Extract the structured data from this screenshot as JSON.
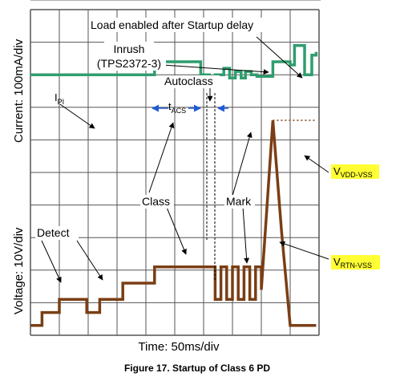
{
  "chart_data": {
    "type": "line",
    "title": "Figure 17.  Startup of Class 6 PD",
    "xlabel": "Time: 50ms/div",
    "ylabel_top": "Current: 100mA/div",
    "ylabel_bottom": "Voltage: 10V/div",
    "grid": true,
    "x_divisions": 10,
    "y_divisions": 10,
    "x_unit_per_div": "50ms",
    "series": [
      {
        "name": "I_PI",
        "color": "#2e9e6e",
        "x": [
          0,
          4.3,
          4.3,
          5.9,
          5.9,
          6.2,
          6.2,
          6.4,
          6.4,
          6.7,
          6.7,
          6.9,
          6.9,
          7.1,
          7.1,
          7.3,
          7.3,
          7.45,
          7.45,
          7.65,
          7.65,
          7.85,
          7.85,
          8.4,
          8.4,
          9.0,
          9.0,
          9.15,
          9.15,
          9.5,
          9.5,
          9.75,
          9.75,
          9.9,
          9.9
        ],
        "y": [
          8.0,
          8.0,
          8.4,
          8.4,
          8.0,
          8.0,
          7.9,
          7.9,
          8.0,
          8.0,
          8.2,
          8.2,
          7.9,
          7.9,
          8.1,
          8.1,
          7.9,
          7.9,
          8.1,
          8.1,
          8.0,
          8.0,
          7.95,
          7.95,
          8.4,
          8.4,
          8.3,
          8.3,
          8.9,
          8.9,
          8.0,
          8.0,
          8.6,
          8.6,
          8.7
        ]
      },
      {
        "name": "V_RTN-VSS",
        "color": "#7a3e14",
        "x": [
          0,
          0.4,
          0.4,
          1.0,
          1.0,
          1.95,
          1.95,
          2.4,
          2.4,
          3.2,
          3.2,
          4.3,
          4.3,
          5.3,
          5.3,
          6.4,
          6.4,
          6.6,
          6.6,
          6.8,
          6.8,
          7.0,
          7.0,
          7.2,
          7.2,
          7.4,
          7.4,
          7.6,
          7.6,
          7.8,
          7.8,
          8.0,
          8.0,
          8.4,
          8.7,
          9.0,
          9.3,
          9.9
        ],
        "y": [
          0.3,
          0.3,
          0.7,
          0.7,
          1.1,
          1.1,
          0.7,
          0.7,
          1.1,
          1.1,
          1.6,
          1.6,
          2.1,
          2.1,
          2.1,
          2.1,
          1.1,
          1.1,
          2.1,
          2.1,
          1.1,
          1.1,
          2.1,
          2.1,
          1.1,
          1.1,
          2.1,
          2.1,
          1.1,
          1.1,
          2.1,
          2.1,
          1.4,
          6.6,
          3.2,
          0.3,
          0.3,
          0.3
        ]
      },
      {
        "name": "V_VDD-VSS",
        "color": "#7a3e14",
        "style": "dotted",
        "x": [
          8.4,
          9.9
        ],
        "y": [
          6.6,
          6.6
        ]
      }
    ],
    "annotations": [
      {
        "text": "Load enabled after Startup delay"
      },
      {
        "text": "Inrush"
      },
      {
        "text": "(TPS2372-3)"
      },
      {
        "text": "Autoclass"
      },
      {
        "text": "I",
        "sub": "PI"
      },
      {
        "text": "t",
        "sub": "ACS"
      },
      {
        "text": "Class"
      },
      {
        "text": "Mark"
      },
      {
        "text": "Detect"
      },
      {
        "text": "V",
        "sub": "VDD-VSS"
      },
      {
        "text": "V",
        "sub": "RTN-VSS"
      }
    ]
  }
}
